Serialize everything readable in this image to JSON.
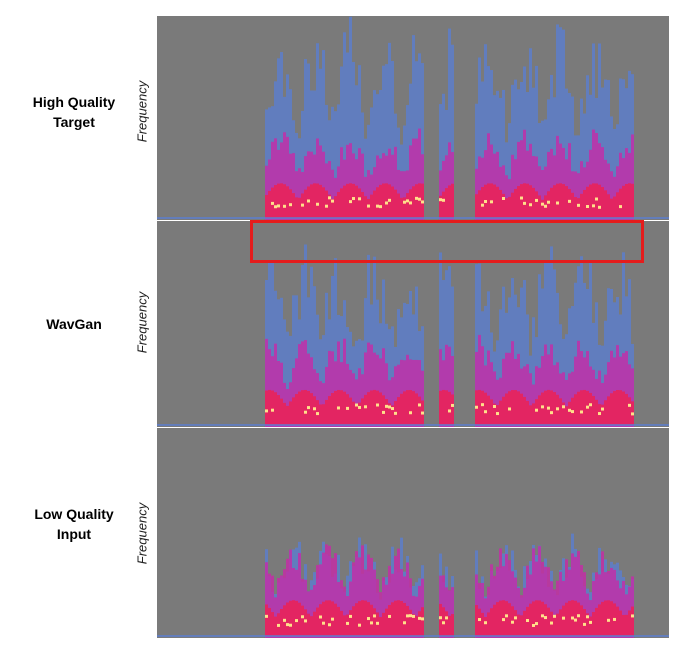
{
  "rows": [
    {
      "label_line1": "High Quality",
      "label_line2": "Target",
      "axis_label": "Frequency",
      "fill_height": 1.0
    },
    {
      "label_line1": "WavGan",
      "label_line2": "",
      "axis_label": "Frequency",
      "fill_height": 0.9
    },
    {
      "label_line1": "Low Quality",
      "label_line2": "Input",
      "axis_label": "Frequency",
      "fill_height": 0.5
    }
  ],
  "colors": {
    "background": "#7a7a7a",
    "low": "#5a7fd6",
    "mid": "#c72aa8",
    "high": "#e8235a",
    "peak": "#ffe08a",
    "highlight_box": "#e51c1c"
  }
}
